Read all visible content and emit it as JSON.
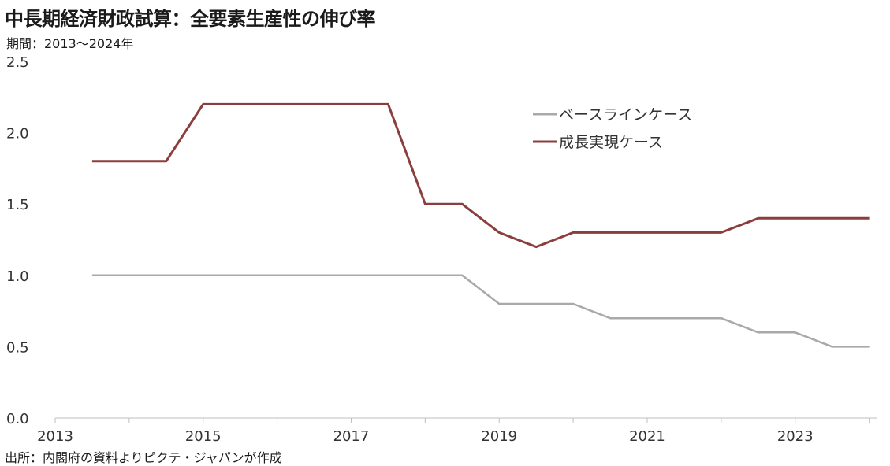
{
  "header": {
    "title": "中長期経済財政試算：全要素生産性の伸び率",
    "subtitle": "期間：2013～2024年"
  },
  "footer": {
    "source": "出所：内閣府の資料よりピクテ・ジャパンが作成"
  },
  "chart_data": {
    "type": "line",
    "title": "中長期経済財政試算：全要素生産性の伸び率",
    "xlabel": "",
    "ylabel": "",
    "xlim": [
      2013,
      2024.1
    ],
    "ylim": [
      0,
      2.5
    ],
    "y_ticks": [
      "0.0",
      "0.5",
      "1.0",
      "1.5",
      "2.0",
      "2.5"
    ],
    "x_ticks": [
      "2013",
      "2015",
      "2017",
      "2019",
      "2021",
      "2023"
    ],
    "grid": false,
    "legend_position": "top-right",
    "colors": {
      "baseline": "#a9a9a9",
      "growth": "#8b3e3e"
    },
    "series": [
      {
        "name": "ベースラインケース",
        "color": "#a9a9a9",
        "points": [
          [
            2013.5,
            1.0
          ],
          [
            2018.5,
            1.0
          ],
          [
            2019.0,
            0.8
          ],
          [
            2020.0,
            0.8
          ],
          [
            2020.5,
            0.7
          ],
          [
            2022.0,
            0.7
          ],
          [
            2022.5,
            0.6
          ],
          [
            2023.0,
            0.6
          ],
          [
            2023.5,
            0.5
          ],
          [
            2024.0,
            0.5
          ]
        ]
      },
      {
        "name": "成長実現ケース",
        "color": "#8b3e3e",
        "points": [
          [
            2013.5,
            1.8
          ],
          [
            2014.5,
            1.8
          ],
          [
            2015.0,
            2.2
          ],
          [
            2017.5,
            2.2
          ],
          [
            2018.0,
            1.5
          ],
          [
            2018.5,
            1.5
          ],
          [
            2019.0,
            1.3
          ],
          [
            2019.5,
            1.2
          ],
          [
            2020.0,
            1.3
          ],
          [
            2022.0,
            1.3
          ],
          [
            2022.5,
            1.4
          ],
          [
            2024.0,
            1.4
          ]
        ]
      }
    ]
  }
}
